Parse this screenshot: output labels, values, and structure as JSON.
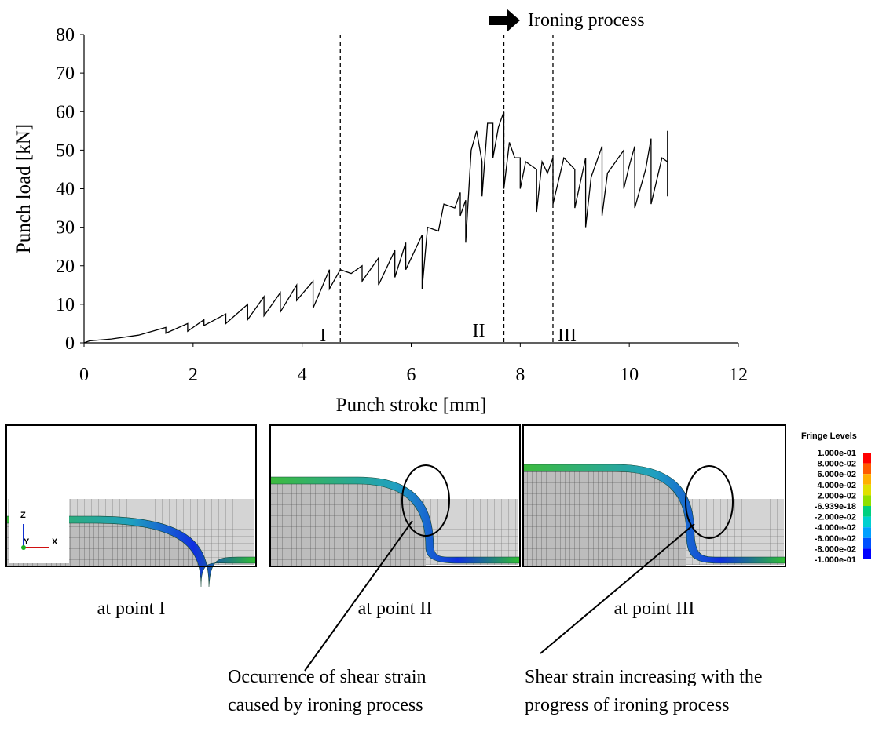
{
  "chart_data": {
    "type": "line",
    "xlabel": "Punch stroke [mm]",
    "ylabel": "Punch load [kN]",
    "xlim": [
      0,
      12
    ],
    "ylim": [
      0,
      80
    ],
    "xticks": [
      0,
      2,
      4,
      6,
      8,
      10,
      12
    ],
    "yticks": [
      0,
      10,
      20,
      30,
      40,
      50,
      60,
      70,
      80
    ],
    "color": "#000000",
    "x": [
      0,
      0.1,
      0.5,
      1,
      1.5,
      1.5,
      1.9,
      1.9,
      2.2,
      2.2,
      2.6,
      2.6,
      3.0,
      3.0,
      3.3,
      3.3,
      3.6,
      3.6,
      3.9,
      3.9,
      4.2,
      4.2,
      4.5,
      4.5,
      4.7,
      4.9,
      5.1,
      5.1,
      5.4,
      5.4,
      5.7,
      5.7,
      5.9,
      5.9,
      6.2,
      6.2,
      6.3,
      6.5,
      6.6,
      6.8,
      6.9,
      6.9,
      7.0,
      7.0,
      7.1,
      7.2,
      7.3,
      7.3,
      7.4,
      7.5,
      7.5,
      7.6,
      7.7,
      7.7,
      7.8,
      7.9,
      8.0,
      8.0,
      8.1,
      8.3,
      8.3,
      8.4,
      8.5,
      8.6,
      8.6,
      8.8,
      9.0,
      9.0,
      9.2,
      9.2,
      9.3,
      9.5,
      9.5,
      9.6,
      9.9,
      9.9,
      10.0,
      10.1,
      10.1,
      10.3,
      10.4,
      10.4,
      10.6,
      10.7,
      10.7,
      10.7
    ],
    "values": [
      0,
      0.5,
      1,
      2,
      4,
      2.5,
      5,
      3,
      6,
      4.5,
      7.5,
      5,
      10,
      6,
      12,
      7,
      13,
      8,
      15,
      11,
      16,
      9,
      19,
      14,
      19,
      18,
      20,
      16,
      22,
      15,
      24,
      17,
      26,
      19,
      28,
      14,
      30,
      29,
      36,
      35,
      39,
      33,
      37,
      26,
      50,
      55,
      47,
      38,
      57,
      57,
      48,
      56,
      60,
      40,
      52,
      48,
      48,
      40,
      47,
      45,
      34,
      47,
      44,
      48,
      36,
      48,
      45,
      35,
      48,
      30,
      43,
      51,
      33,
      44,
      50,
      40,
      46,
      51,
      35,
      45,
      53,
      36,
      48,
      47,
      55,
      38
    ],
    "vlines": [
      {
        "x": 4.7,
        "label": "I"
      },
      {
        "x": 7.7,
        "label": "II"
      },
      {
        "x": 8.6,
        "label": "III"
      }
    ],
    "annotation": "Ironing process"
  },
  "panels": [
    {
      "caption": "at point I"
    },
    {
      "caption": "at point II"
    },
    {
      "caption": "at point III"
    }
  ],
  "triad": [
    "Z",
    "Y",
    "X"
  ],
  "fringe": {
    "title": "Fringe Levels",
    "labels": [
      "1.000e-01",
      "8.000e-02",
      "6.000e-02",
      "4.000e-02",
      "2.000e-02",
      "-6.939e-18",
      "-2.000e-02",
      "-4.000e-02",
      "-6.000e-02",
      "-8.000e-02",
      "-1.000e-01"
    ]
  },
  "notes": [
    {
      "lines": [
        "Occurrence of shear strain",
        "caused by ironing process"
      ]
    },
    {
      "lines": [
        "Shear strain increasing with the",
        "progress of ironing process"
      ]
    }
  ]
}
